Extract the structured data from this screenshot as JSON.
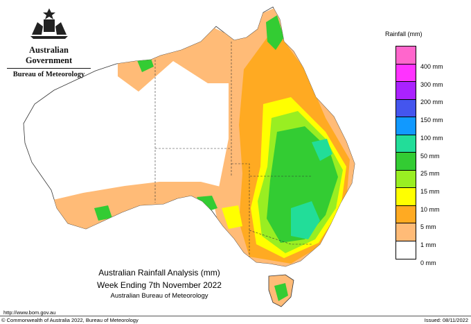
{
  "header": {
    "government": "Australian Government",
    "agency": "Bureau of Meteorology"
  },
  "legend": {
    "title": "Rainfall (mm)",
    "items": [
      {
        "label": "",
        "color": "#ff66cc"
      },
      {
        "label": "400 mm",
        "color": "#ff33ff"
      },
      {
        "label": "300 mm",
        "color": "#aa22ff"
      },
      {
        "label": "200 mm",
        "color": "#4455ee"
      },
      {
        "label": "150 mm",
        "color": "#1199ff"
      },
      {
        "label": "100 mm",
        "color": "#22dd99"
      },
      {
        "label": "50 mm",
        "color": "#33cc33"
      },
      {
        "label": "25 mm",
        "color": "#99ee22"
      },
      {
        "label": "15 mm",
        "color": "#ffff00"
      },
      {
        "label": "10 mm",
        "color": "#ffaa22"
      },
      {
        "label": "5 mm",
        "color": "#ffbb77"
      },
      {
        "label": "1 mm",
        "color": "#ffffff"
      },
      {
        "label": "0 mm",
        "color": ""
      }
    ]
  },
  "caption": {
    "line1": "Australian Rainfall Analysis (mm)",
    "line2": "Week Ending 7th November 2022",
    "line3": "Australian Bureau of Meteorology"
  },
  "footer": {
    "url": "http://www.bom.gov.au",
    "copyright": "© Commonwealth of Australia 2022, Bureau of Meteorology",
    "issued": "Issued: 08/11/2022"
  }
}
